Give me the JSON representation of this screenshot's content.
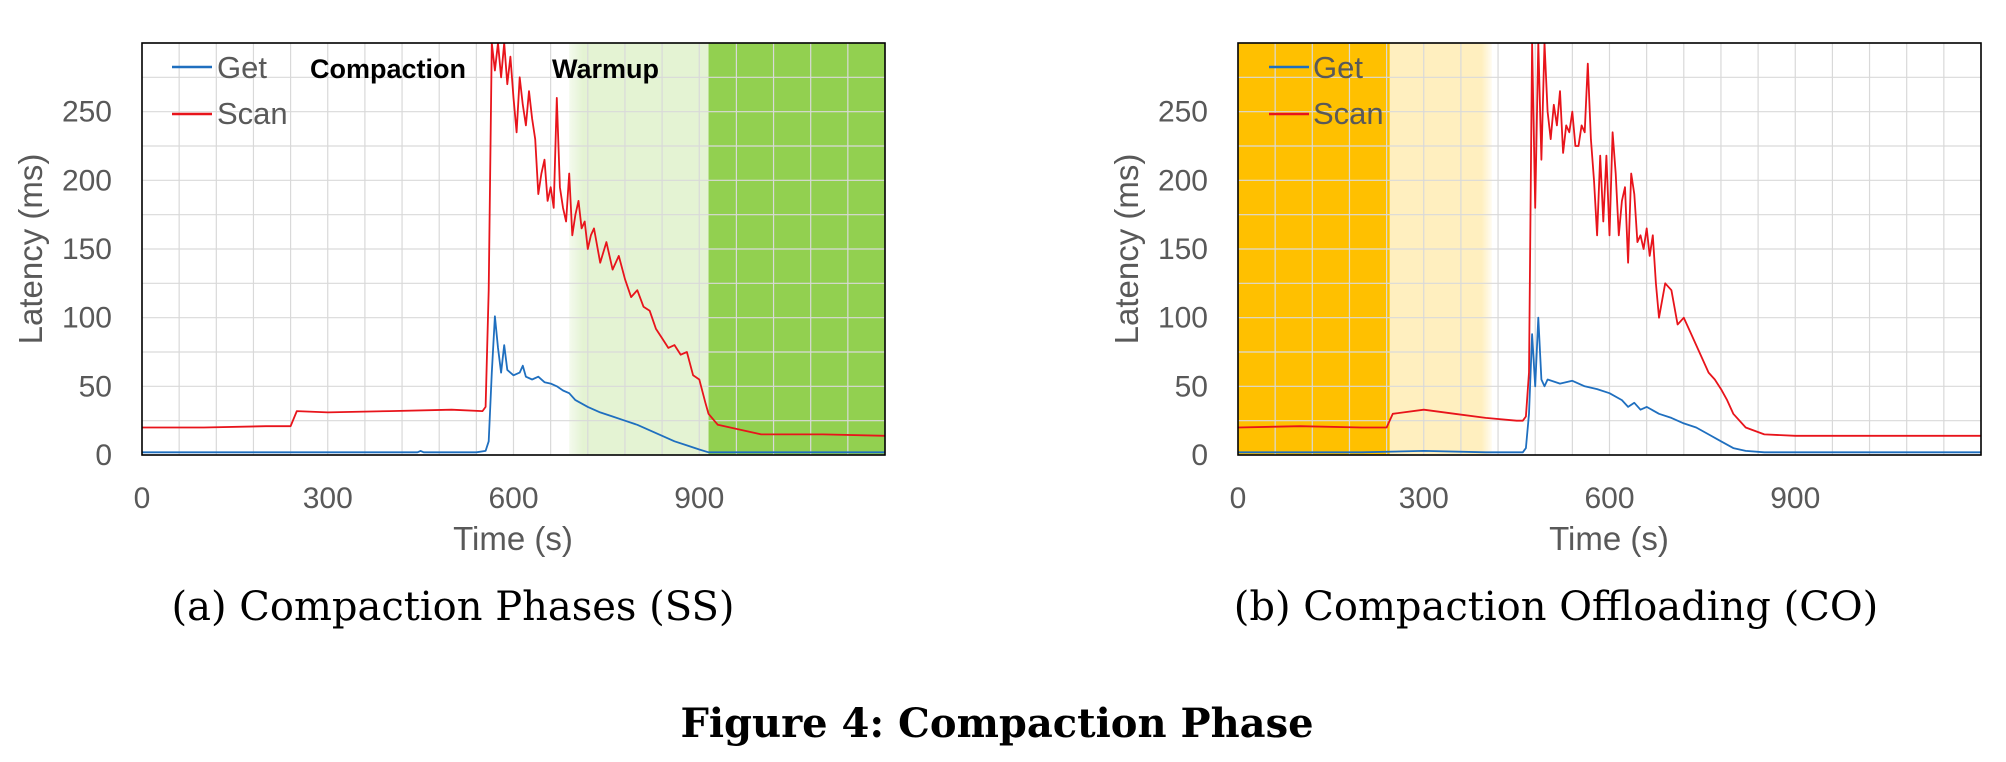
{
  "figure_caption": "Figure 4: Compaction Phase",
  "colors": {
    "get": "#1f6fbf",
    "scan": "#e8141b",
    "grid": "#d9d9d9",
    "compaction_bg": "#ffc000",
    "warmup_bg": "#92d050"
  },
  "chart_data": [
    {
      "type": "line",
      "caption": "(a) Compaction Phases (SS)",
      "xlabel": "Time (s)",
      "ylabel": "Latency (ms)",
      "xlim": [
        0,
        1200
      ],
      "ylim": [
        0,
        300
      ],
      "xticks": [
        0,
        300,
        600,
        900
      ],
      "yticks": [
        0,
        50,
        100,
        150,
        200,
        250
      ],
      "grid": true,
      "legend": "top-left",
      "annotations": [
        "Compaction",
        "Warmup"
      ],
      "shaded_regions": [
        {
          "from": 690,
          "to": 915,
          "fill": "warmup-gradient"
        },
        {
          "from": 915,
          "to": 1200,
          "fill": "warmup"
        }
      ],
      "series": [
        {
          "name": "Get",
          "color": "#1f6fbf",
          "x": [
            0,
            100,
            200,
            300,
            400,
            445,
            450,
            455,
            540,
            555,
            560,
            565,
            570,
            575,
            580,
            585,
            590,
            600,
            610,
            615,
            620,
            630,
            640,
            650,
            660,
            670,
            680,
            690,
            700,
            720,
            740,
            760,
            780,
            800,
            820,
            840,
            860,
            880,
            900,
            915,
            930,
            1000,
            1100,
            1200
          ],
          "y": [
            2,
            2,
            2,
            2,
            2,
            2,
            3,
            2,
            2,
            3,
            10,
            60,
            101,
            78,
            60,
            80,
            62,
            58,
            60,
            65,
            57,
            55,
            57,
            53,
            52,
            50,
            47,
            45,
            40,
            35,
            31,
            28,
            25,
            22,
            18,
            14,
            10,
            7,
            4,
            2,
            2,
            2,
            2,
            2
          ]
        },
        {
          "name": "Scan",
          "color": "#e8141b",
          "x": [
            0,
            100,
            200,
            240,
            250,
            300,
            400,
            500,
            550,
            555,
            560,
            565,
            570,
            575,
            580,
            585,
            590,
            595,
            600,
            605,
            610,
            615,
            620,
            625,
            630,
            635,
            640,
            645,
            650,
            655,
            660,
            665,
            670,
            675,
            680,
            685,
            690,
            695,
            700,
            705,
            710,
            715,
            720,
            725,
            730,
            740,
            750,
            760,
            770,
            780,
            790,
            800,
            810,
            820,
            830,
            840,
            850,
            860,
            870,
            880,
            890,
            900,
            910,
            915,
            930,
            1000,
            1100,
            1200
          ],
          "y": [
            20,
            20,
            21,
            21,
            32,
            31,
            32,
            33,
            32,
            35,
            120,
            300,
            280,
            300,
            275,
            300,
            270,
            290,
            260,
            235,
            275,
            255,
            240,
            265,
            245,
            230,
            190,
            205,
            215,
            185,
            195,
            180,
            260,
            195,
            180,
            170,
            205,
            160,
            175,
            185,
            165,
            170,
            150,
            160,
            165,
            140,
            155,
            135,
            145,
            128,
            115,
            120,
            108,
            105,
            92,
            85,
            78,
            80,
            73,
            75,
            58,
            55,
            38,
            30,
            22,
            15,
            15,
            14
          ]
        }
      ]
    },
    {
      "type": "line",
      "caption": "(b) Compaction Offloading (CO)",
      "xlabel": "Time (s)",
      "ylabel": "Latency (ms)",
      "xlim": [
        0,
        1200
      ],
      "ylim": [
        0,
        300
      ],
      "xticks": [
        0,
        300,
        600,
        900
      ],
      "yticks": [
        0,
        50,
        100,
        150,
        200,
        250
      ],
      "grid": true,
      "legend": "top-left",
      "annotations": [],
      "shaded_regions": [
        {
          "from": 0,
          "to": 245,
          "fill": "compaction"
        },
        {
          "from": 245,
          "to": 410,
          "fill": "compaction-light"
        }
      ],
      "series": [
        {
          "name": "Get",
          "color": "#1f6fbf",
          "x": [
            0,
            100,
            200,
            300,
            400,
            450,
            460,
            465,
            470,
            475,
            480,
            485,
            490,
            495,
            500,
            520,
            540,
            560,
            580,
            600,
            620,
            630,
            640,
            650,
            660,
            680,
            700,
            720,
            740,
            760,
            780,
            800,
            820,
            850,
            900,
            1000,
            1100,
            1200
          ],
          "y": [
            2,
            2,
            2,
            3,
            2,
            2,
            2,
            5,
            30,
            88,
            50,
            100,
            55,
            50,
            55,
            52,
            54,
            50,
            48,
            45,
            40,
            35,
            38,
            33,
            35,
            30,
            27,
            23,
            20,
            15,
            10,
            5,
            3,
            2,
            2,
            2,
            2,
            2
          ]
        },
        {
          "name": "Scan",
          "color": "#e8141b",
          "x": [
            0,
            100,
            200,
            240,
            250,
            300,
            350,
            400,
            450,
            460,
            465,
            470,
            475,
            480,
            485,
            490,
            495,
            500,
            505,
            510,
            515,
            520,
            525,
            530,
            535,
            540,
            545,
            550,
            555,
            560,
            565,
            570,
            575,
            580,
            585,
            590,
            595,
            600,
            605,
            610,
            615,
            620,
            625,
            630,
            635,
            640,
            645,
            650,
            655,
            660,
            665,
            670,
            675,
            680,
            690,
            700,
            710,
            720,
            730,
            740,
            750,
            760,
            770,
            780,
            790,
            800,
            820,
            850,
            900,
            1000,
            1100,
            1200
          ],
          "y": [
            20,
            21,
            20,
            20,
            30,
            33,
            30,
            27,
            25,
            25,
            28,
            60,
            300,
            180,
            300,
            215,
            300,
            250,
            230,
            255,
            240,
            265,
            220,
            240,
            235,
            250,
            225,
            225,
            240,
            235,
            285,
            230,
            200,
            160,
            218,
            170,
            218,
            160,
            235,
            205,
            160,
            185,
            195,
            140,
            205,
            190,
            155,
            160,
            150,
            165,
            145,
            160,
            125,
            100,
            125,
            120,
            95,
            100,
            90,
            80,
            70,
            60,
            55,
            48,
            40,
            30,
            20,
            15,
            14,
            14,
            14,
            14
          ]
        }
      ]
    }
  ]
}
